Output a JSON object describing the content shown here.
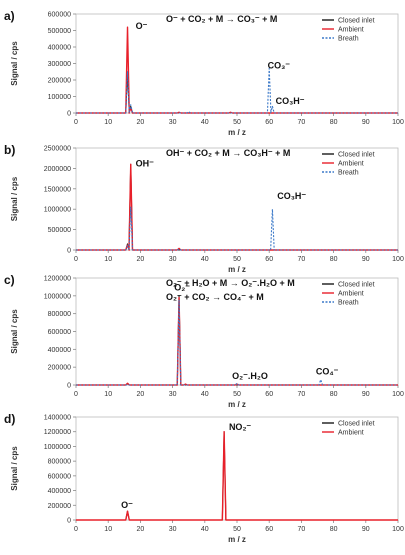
{
  "figure": {
    "colors": {
      "closed": "#1a1a1a",
      "ambient": "#e8202a",
      "breath": "#3a78c8"
    }
  },
  "chart_data": [
    {
      "type": "line",
      "panel_label": "a)",
      "reaction": [
        "O⁻ + CO₂ + M → CO₃⁻ + M"
      ],
      "xlabel": "m / z",
      "ylabel": "Signal / cps",
      "xlim": [
        0,
        100
      ],
      "ylim": [
        0,
        600000
      ],
      "xticks": [
        0,
        10,
        20,
        30,
        40,
        50,
        60,
        70,
        80,
        90,
        100
      ],
      "yticks": [
        0,
        100000,
        200000,
        300000,
        400000,
        500000,
        600000
      ],
      "legend_position": "top-right",
      "series": [
        {
          "name": "Closed inlet",
          "style": "closed",
          "peaks": [
            [
              16,
              250000
            ],
            [
              17,
              40000
            ]
          ]
        },
        {
          "name": "Ambient",
          "style": "ambient",
          "peaks": [
            [
              16,
              520000
            ],
            [
              17,
              30000
            ],
            [
              32,
              4000
            ],
            [
              48,
              4000
            ]
          ]
        },
        {
          "name": "Breath",
          "style": "breath",
          "peaks": [
            [
              16,
              250000
            ],
            [
              17,
              50000
            ],
            [
              35,
              8000
            ],
            [
              60,
              270000
            ],
            [
              61,
              40000
            ]
          ]
        }
      ],
      "annotations": [
        {
          "text": "O⁻",
          "x": 18.5,
          "y": 510000
        },
        {
          "text": "CO₃⁻",
          "x": 59.5,
          "y": 270000
        },
        {
          "text": "CO₃H⁻",
          "x": 62,
          "y": 55000
        }
      ]
    },
    {
      "type": "line",
      "panel_label": "b)",
      "reaction": [
        "OH⁻ + CO₂ + M → CO₃H⁻ + M"
      ],
      "xlabel": "m / z",
      "ylabel": "Signal / cps",
      "xlim": [
        0,
        100
      ],
      "ylim": [
        0,
        2500000
      ],
      "xticks": [
        0,
        10,
        20,
        30,
        40,
        50,
        60,
        70,
        80,
        90,
        100
      ],
      "yticks": [
        0,
        500000,
        1000000,
        1500000,
        2000000,
        2500000
      ],
      "legend_position": "top-right",
      "series": [
        {
          "name": "Closed inlet",
          "style": "closed",
          "peaks": [
            [
              16,
              150000
            ],
            [
              17,
              2100000
            ]
          ]
        },
        {
          "name": "Ambient",
          "style": "ambient",
          "peaks": [
            [
              16,
              120000
            ],
            [
              17,
              2100000
            ],
            [
              32,
              40000
            ]
          ]
        },
        {
          "name": "Breath",
          "style": "breath",
          "peaks": [
            [
              16,
              100000
            ],
            [
              17,
              1050000
            ],
            [
              32,
              20000
            ],
            [
              61,
              1000000
            ]
          ]
        }
      ],
      "annotations": [
        {
          "text": "OH⁻",
          "x": 18.5,
          "y": 2050000
        },
        {
          "text": "CO₃H⁻",
          "x": 62.5,
          "y": 1250000
        }
      ]
    },
    {
      "type": "line",
      "panel_label": "c)",
      "reaction": [
        "O₂⁻ + H₂O + M → O₂⁻.H₂O + M",
        "O₂⁻ + CO₂ → CO₄⁻ + M"
      ],
      "xlabel": "m / z",
      "ylabel": "Signal / cps",
      "xlim": [
        0,
        100
      ],
      "ylim": [
        0,
        1200000
      ],
      "xticks": [
        0,
        10,
        20,
        30,
        40,
        50,
        60,
        70,
        80,
        90,
        100
      ],
      "yticks": [
        0,
        200000,
        400000,
        600000,
        800000,
        1000000,
        1200000
      ],
      "legend_position": "top-right",
      "series": [
        {
          "name": "Closed inlet",
          "style": "closed",
          "peaks": [
            [
              16,
              15000
            ],
            [
              32,
              1000000
            ]
          ]
        },
        {
          "name": "Ambient",
          "style": "ambient",
          "peaks": [
            [
              16,
              20000
            ],
            [
              32,
              980000
            ],
            [
              34,
              10000
            ],
            [
              50,
              10000
            ]
          ]
        },
        {
          "name": "Breath",
          "style": "breath",
          "peaks": [
            [
              32,
              950000
            ],
            [
              50,
              20000
            ],
            [
              76,
              60000
            ]
          ]
        }
      ],
      "annotations": [
        {
          "text": "O₂⁻",
          "x": 30.5,
          "y": 1060000
        },
        {
          "text": "O₂⁻.H₂O",
          "x": 48.5,
          "y": 70000
        },
        {
          "text": "CO₄⁻",
          "x": 74.5,
          "y": 120000
        }
      ]
    },
    {
      "type": "line",
      "panel_label": "d)",
      "reaction": [],
      "xlabel": "m / z",
      "ylabel": "Signal / cps",
      "xlim": [
        0,
        100
      ],
      "ylim": [
        0,
        1400000
      ],
      "xticks": [
        0,
        10,
        20,
        30,
        40,
        50,
        60,
        70,
        80,
        90,
        100
      ],
      "yticks": [
        0,
        200000,
        400000,
        600000,
        800000,
        1000000,
        1200000,
        1400000
      ],
      "legend_position": "top-right",
      "series": [
        {
          "name": "Closed inlet",
          "style": "closed",
          "peaks": [
            [
              16,
              120000
            ],
            [
              46,
              1200000
            ]
          ]
        },
        {
          "name": "Ambient",
          "style": "ambient",
          "peaks": [
            [
              16,
              120000
            ],
            [
              46,
              1200000
            ]
          ]
        }
      ],
      "annotations": [
        {
          "text": "NO₂⁻",
          "x": 47.5,
          "y": 1220000
        },
        {
          "text": "O⁻",
          "x": 14,
          "y": 160000
        }
      ]
    }
  ]
}
